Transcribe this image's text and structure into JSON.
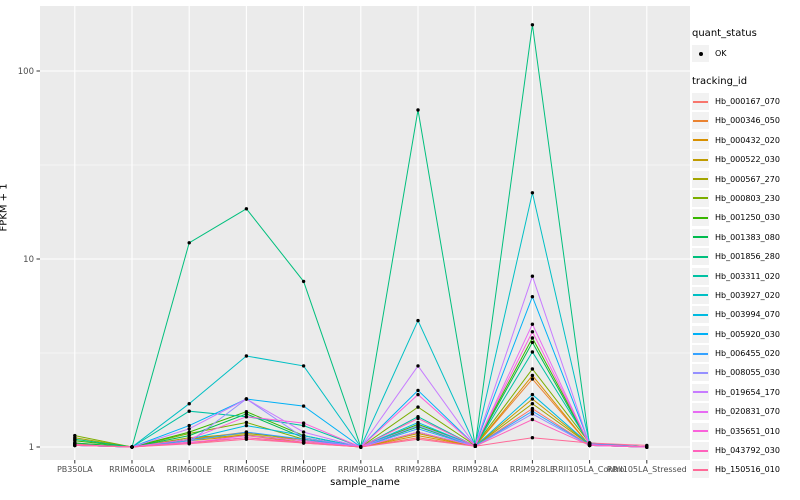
{
  "axis_text_color": "#4D4D4D",
  "chart_data": {
    "type": "line",
    "title": "",
    "xlabel": "sample_name",
    "ylabel": "FPKM + 1",
    "y_scale": "log10",
    "ylim": [
      0.9,
      230
    ],
    "grid": "on",
    "legend_position": "right",
    "panel_bg": "#EBEBEB",
    "grid_color": "#FFFFFF",
    "point_color": "#000000",
    "y_ticks": [
      {
        "label": "1",
        "value": 1
      },
      {
        "label": "10",
        "value": 10
      },
      {
        "label": "100",
        "value": 100
      }
    ],
    "y_minor": [
      3.1623,
      31.623
    ],
    "categories": [
      "PB350LA",
      "RRIM600LA",
      "RRIM600LE",
      "RRIM600SE",
      "RRIM600PE",
      "RRIM901LA",
      "RRIM928BA",
      "RRIM928LA",
      "RRIM928LE",
      "RRII105LA_Control",
      "RRII105LA_Stressed"
    ],
    "series": [
      {
        "name": "Hb_000167_070",
        "color": "#F8766D",
        "values": [
          1.04,
          1.0,
          1.05,
          1.12,
          1.05,
          1.0,
          1.12,
          1.01,
          1.6,
          1.02,
          1.0
        ]
      },
      {
        "name": "Hb_000346_050",
        "color": "#EA8331",
        "values": [
          1.04,
          1.0,
          1.1,
          1.2,
          1.08,
          1.0,
          1.2,
          1.01,
          2.3,
          1.02,
          1.0
        ]
      },
      {
        "name": "Hb_000432_020",
        "color": "#D89000",
        "values": [
          1.03,
          1.0,
          1.08,
          1.15,
          1.06,
          1.0,
          1.15,
          1.01,
          2.4,
          1.02,
          1.0
        ]
      },
      {
        "name": "Hb_000522_030",
        "color": "#C09B00",
        "values": [
          1.05,
          1.0,
          1.1,
          1.16,
          1.08,
          1.0,
          1.18,
          1.01,
          1.8,
          1.03,
          1.0
        ]
      },
      {
        "name": "Hb_000567_270",
        "color": "#A3A500",
        "values": [
          1.12,
          1.0,
          1.12,
          1.18,
          1.1,
          1.0,
          1.2,
          1.01,
          1.7,
          1.03,
          1.0
        ]
      },
      {
        "name": "Hb_000803_230",
        "color": "#7CAE00",
        "values": [
          1.15,
          1.0,
          1.18,
          1.35,
          1.1,
          1.0,
          1.63,
          1.02,
          2.6,
          1.05,
          1.0
        ]
      },
      {
        "name": "Hb_001250_030",
        "color": "#39B600",
        "values": [
          1.08,
          1.0,
          1.2,
          1.54,
          1.15,
          1.0,
          1.32,
          1.02,
          3.8,
          1.04,
          1.0
        ]
      },
      {
        "name": "Hb_001383_080",
        "color": "#00BB4E",
        "values": [
          1.05,
          1.0,
          1.15,
          1.5,
          1.12,
          1.0,
          1.28,
          1.01,
          3.6,
          1.03,
          1.0
        ]
      },
      {
        "name": "Hb_001856_280",
        "color": "#00BF7D",
        "values": [
          1.1,
          1.0,
          12.2,
          18.5,
          7.6,
          1.0,
          62.0,
          1.02,
          176.0,
          1.02,
          1.0
        ]
      },
      {
        "name": "Hb_003311_020",
        "color": "#00C1A3",
        "values": [
          1.02,
          1.0,
          1.55,
          1.45,
          1.3,
          1.0,
          1.45,
          1.01,
          3.2,
          1.04,
          1.0
        ]
      },
      {
        "name": "Hb_003927_020",
        "color": "#00BFC4",
        "values": [
          1.02,
          1.0,
          1.7,
          3.05,
          2.7,
          1.0,
          4.7,
          1.02,
          22.5,
          1.05,
          1.0
        ]
      },
      {
        "name": "Hb_003994_070",
        "color": "#00BAE0",
        "values": [
          1.02,
          1.0,
          1.1,
          1.3,
          1.15,
          1.0,
          1.35,
          1.01,
          1.9,
          1.03,
          1.0
        ]
      },
      {
        "name": "Hb_005920_030",
        "color": "#00B0F6",
        "values": [
          1.02,
          1.0,
          1.3,
          1.8,
          1.65,
          1.0,
          2.0,
          1.02,
          6.3,
          1.04,
          1.0
        ]
      },
      {
        "name": "Hb_006455_020",
        "color": "#35A2FF",
        "values": [
          1.02,
          1.0,
          1.08,
          1.2,
          1.1,
          1.0,
          1.25,
          1.01,
          1.55,
          1.02,
          1.0
        ]
      },
      {
        "name": "Hb_008055_030",
        "color": "#9590FF",
        "values": [
          1.02,
          1.0,
          1.06,
          1.8,
          1.12,
          1.0,
          1.3,
          1.01,
          1.5,
          1.02,
          1.0
        ]
      },
      {
        "name": "Hb_019654_170",
        "color": "#C77CFF",
        "values": [
          1.03,
          1.0,
          1.25,
          1.8,
          1.2,
          1.0,
          2.7,
          1.02,
          8.1,
          1.03,
          1.0
        ]
      },
      {
        "name": "Hb_020831_070",
        "color": "#E76BF3",
        "values": [
          1.02,
          1.0,
          1.05,
          1.15,
          1.08,
          1.0,
          1.2,
          1.01,
          4.5,
          1.02,
          1.0
        ]
      },
      {
        "name": "Hb_035651_010",
        "color": "#FA62DB",
        "values": [
          1.03,
          1.0,
          1.1,
          1.45,
          1.34,
          1.0,
          1.9,
          1.02,
          4.1,
          1.03,
          1.0
        ]
      },
      {
        "name": "Hb_043792_030",
        "color": "#FF62BC",
        "values": [
          1.03,
          1.0,
          1.06,
          1.12,
          1.06,
          1.0,
          1.42,
          1.01,
          1.4,
          1.02,
          1.0
        ]
      },
      {
        "name": "Hb_150516_010",
        "color": "#FF6A98",
        "values": [
          1.02,
          1.0,
          1.04,
          1.1,
          1.05,
          1.0,
          1.1,
          1.01,
          1.12,
          1.05,
          1.02
        ]
      }
    ]
  },
  "legend": {
    "quant_title": "quant_status",
    "quant_ok_label": "OK",
    "tracking_title": "tracking_id",
    "key_bg": "#F2F2F2"
  }
}
